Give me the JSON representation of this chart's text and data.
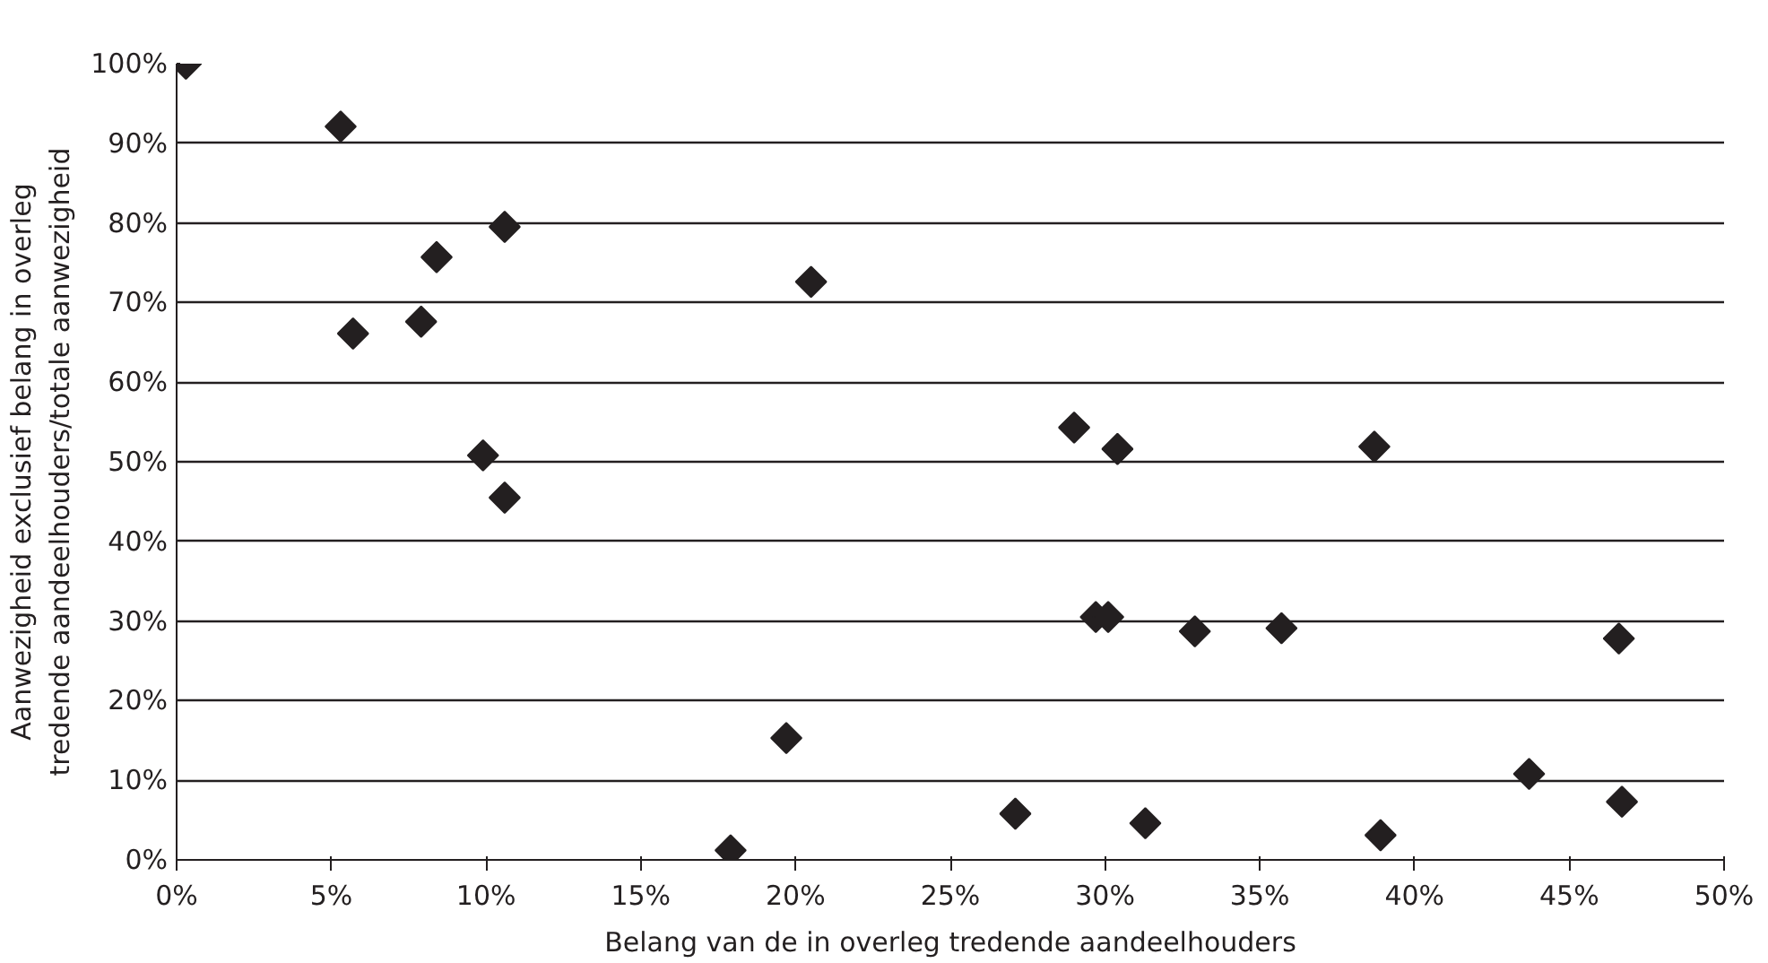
{
  "chart_data": {
    "type": "scatter",
    "xlabel": "Belang van de in overleg tredende aandeelhouders",
    "ylabel": "Aanwezigheid exclusief belang in overleg\ntredende aandeelhouders/totale aanwezigheid",
    "x": [
      0.3,
      5.3,
      10.6,
      8.4,
      20.5,
      5.7,
      7.9,
      9.9,
      10.6,
      19.7,
      17.9,
      29.0,
      30.4,
      38.7,
      29.7,
      30.1,
      32.9,
      35.7,
      46.6,
      27.1,
      31.3,
      38.9,
      43.7,
      46.7
    ],
    "values": [
      100,
      92.1,
      79.5,
      75.7,
      72.6,
      66.1,
      67.6,
      50.8,
      45.5,
      15.3,
      1.2,
      54.3,
      51.6,
      51.9,
      30.5,
      30.5,
      28.7,
      29.1,
      27.8,
      5.8,
      4.6,
      3.1,
      10.8,
      7.3
    ],
    "color": "#231f20",
    "marker": "diamond",
    "grid": "y",
    "xlim": [
      0,
      50
    ],
    "ylim": [
      0,
      100
    ],
    "xticks": [
      {
        "value": 0,
        "label": "0%"
      },
      {
        "value": 5,
        "label": "5%"
      },
      {
        "value": 10,
        "label": "10%"
      },
      {
        "value": 15,
        "label": "15%"
      },
      {
        "value": 20,
        "label": "20%"
      },
      {
        "value": 25,
        "label": "25%"
      },
      {
        "value": 30,
        "label": "30%"
      },
      {
        "value": 35,
        "label": "35%"
      },
      {
        "value": 40,
        "label": "40%"
      },
      {
        "value": 45,
        "label": "45%"
      },
      {
        "value": 50,
        "label": "50%"
      }
    ],
    "yticks": [
      {
        "value": 0,
        "label": "0%"
      },
      {
        "value": 10,
        "label": "10%"
      },
      {
        "value": 20,
        "label": "20%"
      },
      {
        "value": 30,
        "label": "30%"
      },
      {
        "value": 40,
        "label": "40%"
      },
      {
        "value": 50,
        "label": "50%"
      },
      {
        "value": 60,
        "label": "60%"
      },
      {
        "value": 70,
        "label": "70%"
      },
      {
        "value": 80,
        "label": "80%"
      },
      {
        "value": 90,
        "label": "90%"
      },
      {
        "value": 100,
        "label": "100%"
      }
    ]
  }
}
